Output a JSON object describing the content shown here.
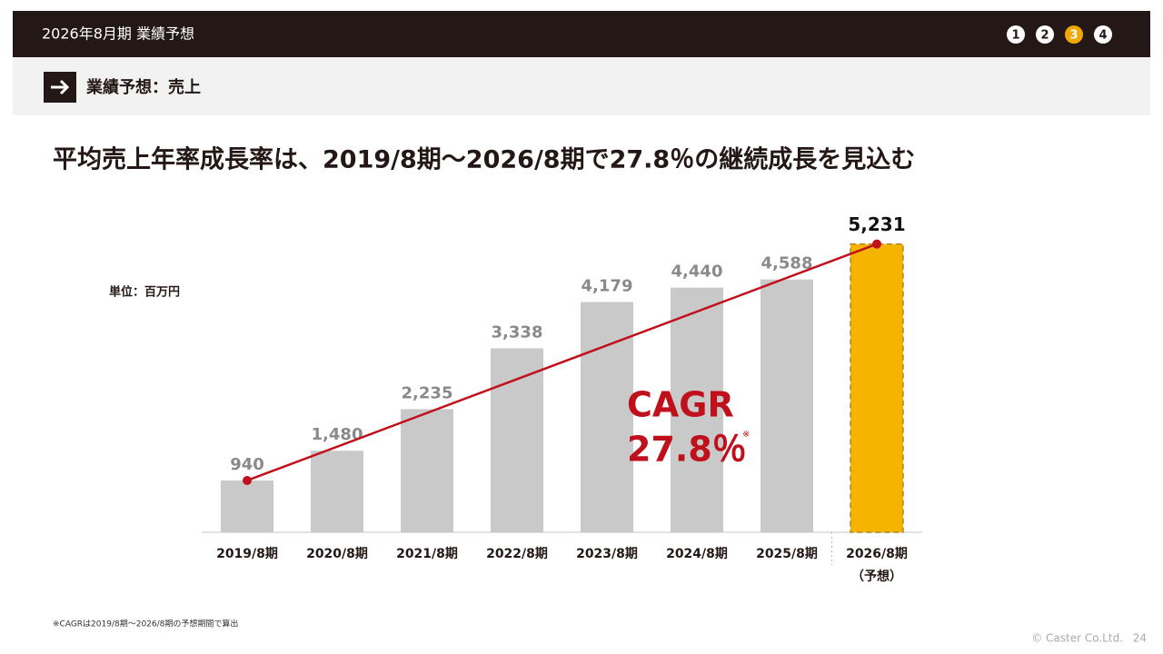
{
  "header": {
    "title": "2026年8月期 業績予想",
    "steps": [
      "1",
      "2",
      "3",
      "4"
    ],
    "active_step": 3
  },
  "section": {
    "title": "業績予想：売上"
  },
  "headline": "平均売上年率成長率は、2019/8期～2026/8期で27.8％の継続成長を見込む",
  "chart_data": {
    "type": "bar",
    "unit_label": "単位：百万円",
    "categories": [
      "2019/8期",
      "2020/8期",
      "2021/8期",
      "2022/8期",
      "2023/8期",
      "2024/8期",
      "2025/8期",
      "2026/8期"
    ],
    "category_notes": [
      null,
      null,
      null,
      null,
      null,
      null,
      null,
      "（予想）"
    ],
    "values": [
      940,
      1480,
      2235,
      3338,
      4179,
      4440,
      4588,
      5231
    ],
    "value_labels": [
      "940",
      "1,480",
      "2,235",
      "3,338",
      "4,179",
      "4,440",
      "4,588",
      "5,231"
    ],
    "colors": [
      "#c9c9c9",
      "#c9c9c9",
      "#c9c9c9",
      "#c9c9c9",
      "#c9c9c9",
      "#c9c9c9",
      "#c9c9c9",
      "#f5b400"
    ],
    "ylim": [
      0,
      6000
    ],
    "annotation": {
      "label": "CAGR",
      "value_label": "27.8％",
      "mark": "※",
      "color": "#c0101c"
    }
  },
  "footnote": "※CAGRは2019/8期～2026/8期の予想期間で算出",
  "copyright": "© Caster Co.Ltd.",
  "page_number": "24"
}
